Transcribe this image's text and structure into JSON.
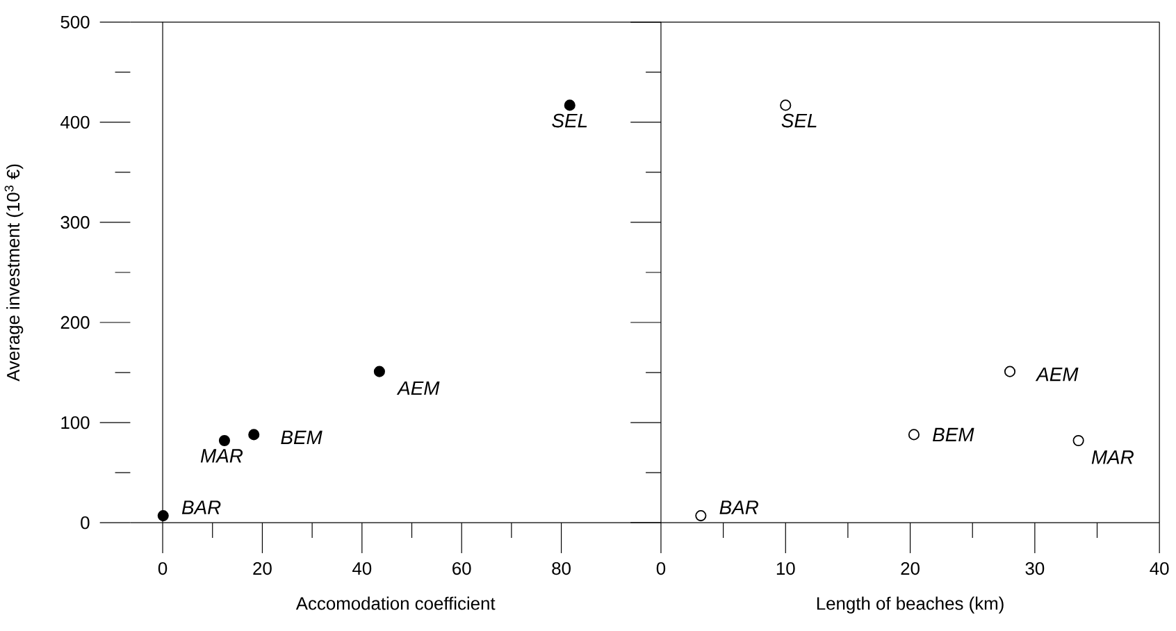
{
  "chart_data": [
    {
      "type": "scatter",
      "xlabel": "Accomodation coefficient",
      "ylabel": "Average investment (10$^{3}$ €)",
      "x": [
        0.1,
        12.4,
        18.3,
        43.5,
        81.7
      ],
      "series": [
        {
          "color": "#000000",
          "values": [
            7,
            82,
            88,
            151,
            417
          ]
        }
      ],
      "marker": "circle",
      "xlim": [
        -6.5,
        100
      ],
      "ylim": [
        0,
        500
      ],
      "xticks": [
        0,
        20,
        40,
        60,
        80
      ],
      "yticks": [
        0,
        100,
        200,
        300,
        400,
        500
      ],
      "annotations": [
        {
          "text": "BAR",
          "x": 0.1,
          "y": 7
        },
        {
          "text": "MAR",
          "x": 12.4,
          "y": 82
        },
        {
          "text": "BEM",
          "x": 18.3,
          "y": 88
        },
        {
          "text": "AEM",
          "x": 43.5,
          "y": 151
        },
        {
          "text": "SEL",
          "x": 81.7,
          "y": 417
        }
      ]
    },
    {
      "type": "scatter",
      "xlabel": "Length of beaches (km)",
      "x": [
        3.2,
        33.5,
        20.3,
        28.0,
        10.0
      ],
      "series": [
        {
          "color": "#ffffff",
          "values": [
            7,
            82,
            88,
            151,
            417
          ]
        }
      ],
      "marker": "circle",
      "xlim": [
        0,
        40
      ],
      "ylim": [
        0,
        500
      ],
      "xticks": [
        0,
        10,
        20,
        30,
        40
      ],
      "yticks": [
        {
          "value": 0,
          "label": null
        },
        {
          "value": 100,
          "label": null
        },
        {
          "value": 200,
          "label": null
        },
        {
          "value": 300,
          "label": null
        },
        {
          "value": 400,
          "label": null
        },
        {
          "value": 500,
          "label": null
        }
      ],
      "tick_labels": "x",
      "annotations": [
        {
          "text": "BAR",
          "x": 3.2,
          "y": 7
        },
        {
          "text": "MAR",
          "x": 33.5,
          "y": 82
        },
        {
          "text": "BEM",
          "x": 20.3,
          "y": 88
        },
        {
          "text": "AEM",
          "x": 28.0,
          "y": 151
        },
        {
          "text": "SEL",
          "x": 10.0,
          "y": 417
        }
      ]
    }
  ]
}
